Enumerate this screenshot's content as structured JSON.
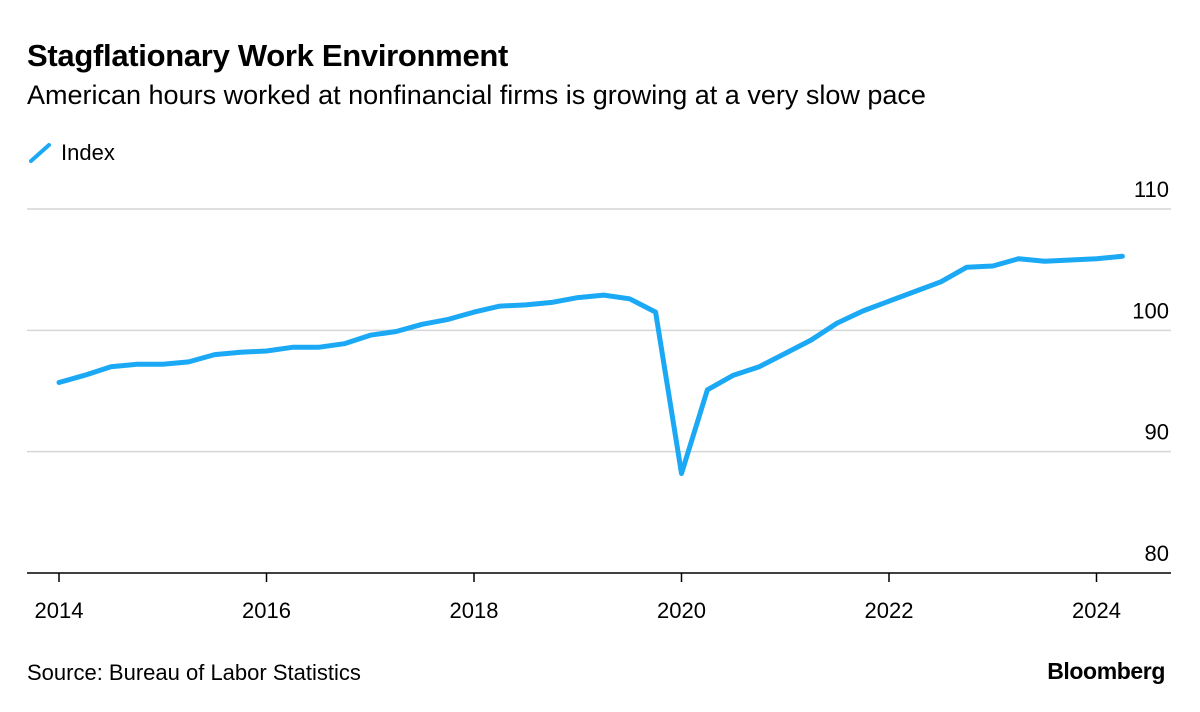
{
  "chart_data": {
    "type": "line",
    "title": "Stagflationary Work Environment",
    "subtitle": "American hours worked at nonfinancial firms is growing at a very slow pace",
    "xlabel": "",
    "ylabel": "",
    "xlim": [
      2014,
      2025.2
    ],
    "ylim": [
      80,
      110
    ],
    "x_ticks": [
      2014,
      2016,
      2018,
      2020,
      2022,
      2024
    ],
    "x_tick_labels": [
      "2014",
      "2016",
      "2018",
      "2020",
      "2022",
      "2024"
    ],
    "y_ticks": [
      80,
      90,
      100,
      110
    ],
    "y_tick_labels": [
      "80",
      "90",
      "100",
      "110"
    ],
    "y_axis_side": "right",
    "grid": true,
    "legend_position": "top-left",
    "series": [
      {
        "name": "Index",
        "color": "#1ba9f5",
        "x": [
          2014.0,
          2014.25,
          2014.5,
          2014.75,
          2015.0,
          2015.25,
          2015.5,
          2015.75,
          2016.0,
          2016.25,
          2016.5,
          2016.75,
          2017.0,
          2017.25,
          2017.5,
          2017.75,
          2018.0,
          2018.25,
          2018.5,
          2018.75,
          2019.0,
          2019.25,
          2019.5,
          2019.75,
          2020.0,
          2020.25,
          2020.5,
          2020.75,
          2021.0,
          2021.25,
          2021.5,
          2021.75,
          2022.0,
          2022.25,
          2022.5,
          2022.75,
          2023.0,
          2023.25,
          2023.5,
          2023.75,
          2024.0,
          2024.25
        ],
        "values": [
          95.7,
          96.3,
          97.0,
          97.2,
          97.2,
          97.4,
          98.0,
          98.2,
          98.3,
          98.6,
          98.6,
          98.9,
          99.6,
          99.9,
          100.5,
          100.9,
          101.5,
          102.0,
          102.1,
          102.3,
          102.7,
          102.9,
          102.6,
          101.5,
          88.2,
          95.1,
          96.3,
          97.0,
          98.1,
          99.2,
          100.6,
          101.6,
          102.4,
          103.2,
          104.0,
          105.2,
          105.3,
          105.9,
          105.7,
          105.8,
          105.9,
          106.1
        ]
      }
    ]
  },
  "source": "Source: Bureau of Labor Statistics",
  "brand": "Bloomberg"
}
